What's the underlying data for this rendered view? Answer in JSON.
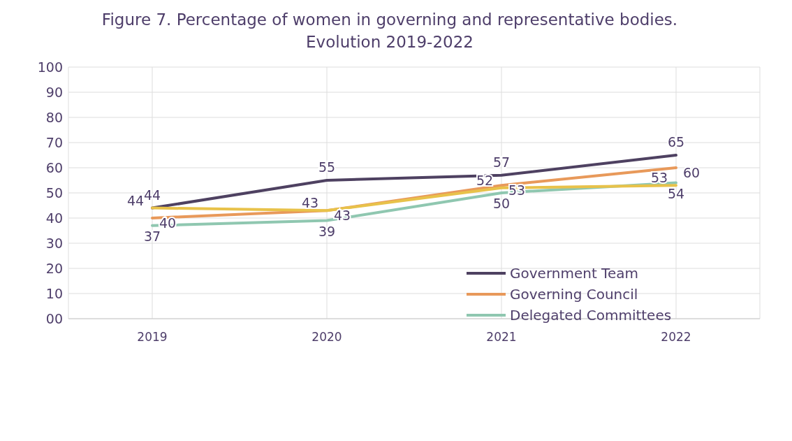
{
  "chart_data": {
    "type": "line",
    "title": "Figure 7. Percentage of women in governing and representative bodies.\nEvolution 2019-2022",
    "categories": [
      "2019",
      "2020",
      "2021",
      "2022"
    ],
    "series": [
      {
        "name": "Government Team",
        "color": "#4e4161",
        "values": [
          44,
          55,
          57,
          65
        ]
      },
      {
        "name": "Governing Council",
        "color": "#e8995a",
        "values": [
          40,
          43,
          53,
          60
        ]
      },
      {
        "name": "Delegated Committees",
        "color": "#8fc7b0",
        "values": [
          37,
          39,
          50,
          54
        ]
      },
      {
        "color": "#e8c24a",
        "values": [
          44,
          43,
          52,
          53
        ]
      }
    ],
    "ylim": [
      0,
      100
    ],
    "yticks": [
      {
        "value": 0,
        "label": "00"
      },
      10,
      20,
      30,
      40,
      50,
      60,
      70,
      80,
      90,
      100
    ],
    "grid": true,
    "legend": "bottom right",
    "data_labels": true,
    "marker": "none",
    "line_style": "solid"
  }
}
